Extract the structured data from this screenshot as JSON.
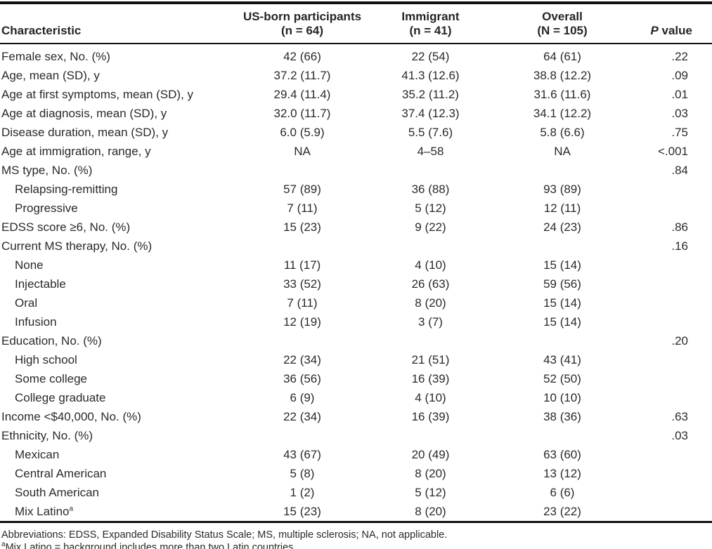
{
  "table": {
    "header": {
      "characteristic": "Characteristic",
      "groups": [
        {
          "line1": "US-born participants",
          "line2": "(n = 64)"
        },
        {
          "line1": "Immigrant",
          "line2": "(n = 41)"
        },
        {
          "line1": "Overall",
          "line2": "(N = 105)"
        }
      ],
      "p_italic": "P",
      "p_rest": " value"
    },
    "rows": [
      {
        "label": "Female sex, No. (%)",
        "indent": false,
        "us_born": "42 (66)",
        "immigrant": "22 (54)",
        "overall": "64 (61)",
        "p": ".22"
      },
      {
        "label": "Age, mean (SD), y",
        "indent": false,
        "us_born": "37.2 (11.7)",
        "immigrant": "41.3 (12.6)",
        "overall": "38.8 (12.2)",
        "p": ".09"
      },
      {
        "label": "Age at first symptoms, mean (SD), y",
        "indent": false,
        "us_born": "29.4 (11.4)",
        "immigrant": "35.2 (11.2)",
        "overall": "31.6 (11.6)",
        "p": ".01"
      },
      {
        "label": "Age at diagnosis, mean (SD), y",
        "indent": false,
        "us_born": "32.0 (11.7)",
        "immigrant": "37.4 (12.3)",
        "overall": "34.1 (12.2)",
        "p": ".03"
      },
      {
        "label": "Disease duration, mean (SD), y",
        "indent": false,
        "us_born": "6.0 (5.9)",
        "immigrant": "5.5 (7.6)",
        "overall": "5.8 (6.6)",
        "p": ".75"
      },
      {
        "label": "Age at immigration, range, y",
        "indent": false,
        "us_born": "NA",
        "immigrant": "4–58",
        "overall": "NA",
        "p": "<.001"
      },
      {
        "label": "MS type, No. (%)",
        "indent": false,
        "us_born": "",
        "immigrant": "",
        "overall": "",
        "p": ".84"
      },
      {
        "label": "Relapsing-remitting",
        "indent": true,
        "us_born": "57 (89)",
        "immigrant": "36 (88)",
        "overall": "93 (89)",
        "p": ""
      },
      {
        "label": "Progressive",
        "indent": true,
        "us_born": "7 (11)",
        "immigrant": "5 (12)",
        "overall": "12 (11)",
        "p": ""
      },
      {
        "label": "EDSS score ≥6, No. (%)",
        "indent": false,
        "us_born": "15 (23)",
        "immigrant": "9 (22)",
        "overall": "24 (23)",
        "p": ".86"
      },
      {
        "label": "Current MS therapy, No. (%)",
        "indent": false,
        "us_born": "",
        "immigrant": "",
        "overall": "",
        "p": ".16"
      },
      {
        "label": "None",
        "indent": true,
        "us_born": "11 (17)",
        "immigrant": "4 (10)",
        "overall": "15 (14)",
        "p": ""
      },
      {
        "label": "Injectable",
        "indent": true,
        "us_born": "33 (52)",
        "immigrant": "26 (63)",
        "overall": "59 (56)",
        "p": ""
      },
      {
        "label": "Oral",
        "indent": true,
        "us_born": "7 (11)",
        "immigrant": "8 (20)",
        "overall": "15 (14)",
        "p": ""
      },
      {
        "label": "Infusion",
        "indent": true,
        "us_born": "12 (19)",
        "immigrant": "3 (7)",
        "overall": "15 (14)",
        "p": ""
      },
      {
        "label": "Education, No. (%)",
        "indent": false,
        "us_born": "",
        "immigrant": "",
        "overall": "",
        "p": ".20"
      },
      {
        "label": "High school",
        "indent": true,
        "us_born": "22 (34)",
        "immigrant": "21 (51)",
        "overall": "43 (41)",
        "p": ""
      },
      {
        "label": "Some college",
        "indent": true,
        "us_born": "36 (56)",
        "immigrant": "16 (39)",
        "overall": "52 (50)",
        "p": ""
      },
      {
        "label": "College graduate",
        "indent": true,
        "us_born": "6 (9)",
        "immigrant": "4 (10)",
        "overall": "10 (10)",
        "p": ""
      },
      {
        "label": "Income <$40,000, No. (%)",
        "indent": false,
        "us_born": "22 (34)",
        "immigrant": "16 (39)",
        "overall": "38 (36)",
        "p": ".63"
      },
      {
        "label": "Ethnicity, No. (%)",
        "indent": false,
        "us_born": "",
        "immigrant": "",
        "overall": "",
        "p": ".03"
      },
      {
        "label": "Mexican",
        "indent": true,
        "us_born": "43 (67)",
        "immigrant": "20 (49)",
        "overall": "63 (60)",
        "p": ""
      },
      {
        "label": "Central American",
        "indent": true,
        "us_born": "5 (8)",
        "immigrant": "8 (20)",
        "overall": "13 (12)",
        "p": ""
      },
      {
        "label": "South American",
        "indent": true,
        "us_born": "1 (2)",
        "immigrant": "5 (12)",
        "overall": "6 (6)",
        "p": ""
      },
      {
        "label": "Mix Latino",
        "label_sup": "a",
        "indent": true,
        "us_born": "15 (23)",
        "immigrant": "8 (20)",
        "overall": "23 (22)",
        "p": ""
      }
    ]
  },
  "footnotes": {
    "abbreviations": "Abbreviations: EDSS, Expanded Disability Status Scale; MS, multiple sclerosis; NA, not applicable.",
    "note_sup": "a",
    "note_text": "Mix Latino = background includes more than two Latin countries."
  }
}
